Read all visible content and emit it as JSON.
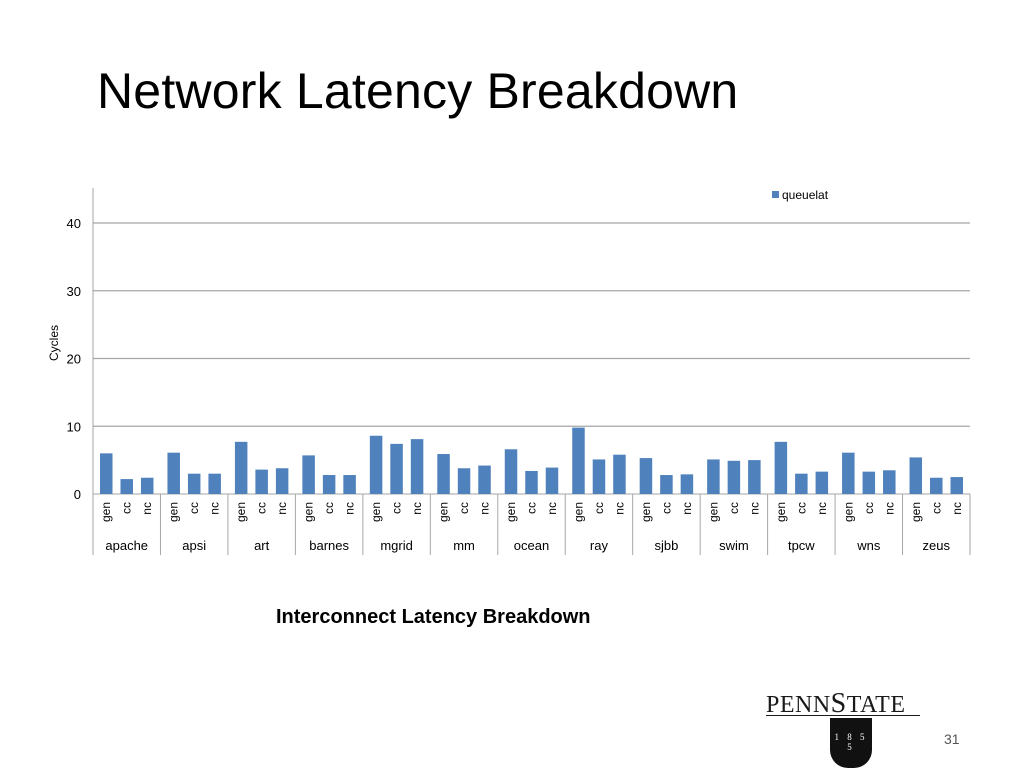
{
  "slide": {
    "title": "Network Latency Breakdown",
    "caption": "Interconnect Latency Breakdown",
    "page_number": "31",
    "logo": {
      "wordmark": "PENNSTATE",
      "year": "1855"
    }
  },
  "chart_data": {
    "type": "bar",
    "ylabel": "Cycles",
    "xlabel": "",
    "ylim": [
      0,
      45
    ],
    "yticks": [
      0,
      10,
      20,
      30,
      40
    ],
    "grid": true,
    "legend_position": "top-right",
    "groups": [
      "apache",
      "apsi",
      "art",
      "barnes",
      "mgrid",
      "mm",
      "ocean",
      "ray",
      "sjbb",
      "swim",
      "tpcw",
      "wns",
      "zeus"
    ],
    "subcategories": [
      "gen",
      "cc",
      "nc"
    ],
    "series": [
      {
        "name": "queuelat",
        "color": "#4F81BD",
        "values": [
          [
            6.0,
            2.2,
            2.4
          ],
          [
            6.1,
            3.0,
            3.0
          ],
          [
            7.7,
            3.6,
            3.8
          ],
          [
            5.7,
            2.8,
            2.8
          ],
          [
            8.6,
            7.4,
            8.1
          ],
          [
            5.9,
            3.8,
            4.2
          ],
          [
            6.6,
            3.4,
            3.9
          ],
          [
            9.8,
            5.1,
            5.8
          ],
          [
            5.3,
            2.8,
            2.9
          ],
          [
            5.1,
            4.9,
            5.0
          ],
          [
            7.7,
            3.0,
            3.3
          ],
          [
            6.1,
            3.3,
            3.5
          ],
          [
            5.4,
            2.4,
            2.5
          ]
        ]
      }
    ]
  }
}
